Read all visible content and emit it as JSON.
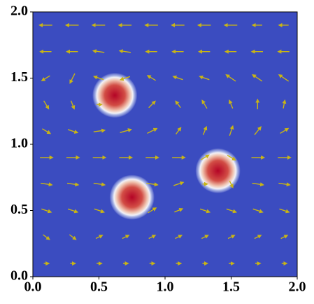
{
  "chart_data": {
    "type": "field",
    "background": "#3b4cc0",
    "blob_color": "#b40426",
    "arrow_color": "#c8b416",
    "xlim": [
      0,
      2
    ],
    "ylim": [
      0,
      2
    ],
    "xticks": [
      {
        "value": 0,
        "label": "0.0"
      },
      0.5,
      {
        "value": 1,
        "label": "1.0"
      },
      1.5,
      {
        "value": 2,
        "label": "2.0"
      }
    ],
    "yticks": [
      {
        "value": 0,
        "label": "0.0"
      },
      0.5,
      {
        "value": 1,
        "label": "1.0"
      },
      1.5,
      {
        "value": 2,
        "label": "2.0"
      }
    ],
    "blobs": {
      "x": [
        0.62,
        0.75,
        1.4
      ],
      "y": [
        1.37,
        0.6,
        0.8
      ],
      "r": [
        0.17,
        0.17,
        0.17
      ]
    },
    "quiver": {
      "x": [
        0.1,
        0.3,
        0.5,
        0.7,
        0.9,
        1.1,
        1.3,
        1.5,
        1.7,
        1.9
      ],
      "y": [
        0.1,
        0.3,
        0.5,
        0.7,
        0.9,
        1.1,
        1.3,
        1.5,
        1.7,
        1.9
      ],
      "u": [
        [
          0.3,
          0.3,
          0.3,
          0.3,
          0.3,
          0.3,
          0.3,
          0.3,
          0.3,
          0.3
        ],
        [
          0.4,
          0.4,
          0.4,
          0.4,
          0.4,
          0.4,
          0.4,
          0.4,
          0.4,
          0.4
        ],
        [
          0.6,
          0.6,
          0.6,
          0,
          0.5,
          0.5,
          0.6,
          0.6,
          0.6,
          0.6
        ],
        [
          0.7,
          0.7,
          0.7,
          0,
          0.7,
          0.6,
          0.3,
          0.2,
          0.7,
          0.7
        ],
        [
          0.8,
          0.8,
          0.8,
          0.8,
          0.8,
          0.8,
          0.5,
          0.5,
          0.8,
          0.8
        ],
        [
          0.5,
          0.6,
          0.7,
          0.7,
          0.6,
          0.3,
          0.2,
          0.2,
          0.4,
          0.5
        ],
        [
          0.3,
          0.2,
          0.3,
          0,
          0.4,
          -0.3,
          -0.3,
          -0.2,
          0,
          0.1
        ],
        [
          -0.5,
          -0.3,
          -0.6,
          -0.6,
          -0.5,
          -0.6,
          -0.6,
          -0.6,
          -0.6,
          -0.6
        ],
        [
          -0.7,
          -0.7,
          -0.7,
          -0.7,
          -0.7,
          -0.7,
          -0.7,
          -0.7,
          -0.7,
          -0.7
        ],
        [
          -0.8,
          -0.8,
          -0.8,
          -0.8,
          -0.8,
          -0.8,
          -0.8,
          -0.8,
          -0.6,
          -0.6
        ]
      ],
      "v": [
        [
          0,
          0,
          0,
          0,
          0,
          0,
          0,
          0,
          0,
          0
        ],
        [
          -0.3,
          -0.3,
          0.2,
          0.2,
          0.2,
          0.2,
          0.2,
          0.2,
          0.2,
          0.2
        ],
        [
          -0.2,
          -0.2,
          -0.2,
          0,
          0.3,
          0.2,
          -0.2,
          -0.2,
          -0.2,
          -0.2
        ],
        [
          -0.1,
          -0.1,
          -0.1,
          0,
          -0.1,
          0.2,
          0,
          -0.4,
          -0.1,
          -0.1
        ],
        [
          0,
          0,
          0,
          0,
          0,
          0,
          0.3,
          -0.3,
          0,
          0
        ],
        [
          -0.3,
          -0.2,
          0.1,
          0.2,
          0.3,
          0.4,
          0.5,
          0.6,
          0.5,
          0.3
        ],
        [
          -0.5,
          -0.5,
          0,
          0,
          0.4,
          0.4,
          0.5,
          0.5,
          0.6,
          0.5
        ],
        [
          -0.3,
          -0.6,
          0.2,
          -0.2,
          0.3,
          0.2,
          0.2,
          0.4,
          0.4,
          0.4
        ],
        [
          0,
          0,
          0.1,
          0.1,
          0,
          0,
          0,
          0,
          0,
          0
        ],
        [
          0,
          0,
          0,
          0,
          0,
          0,
          0,
          0,
          0,
          0
        ]
      ]
    }
  }
}
